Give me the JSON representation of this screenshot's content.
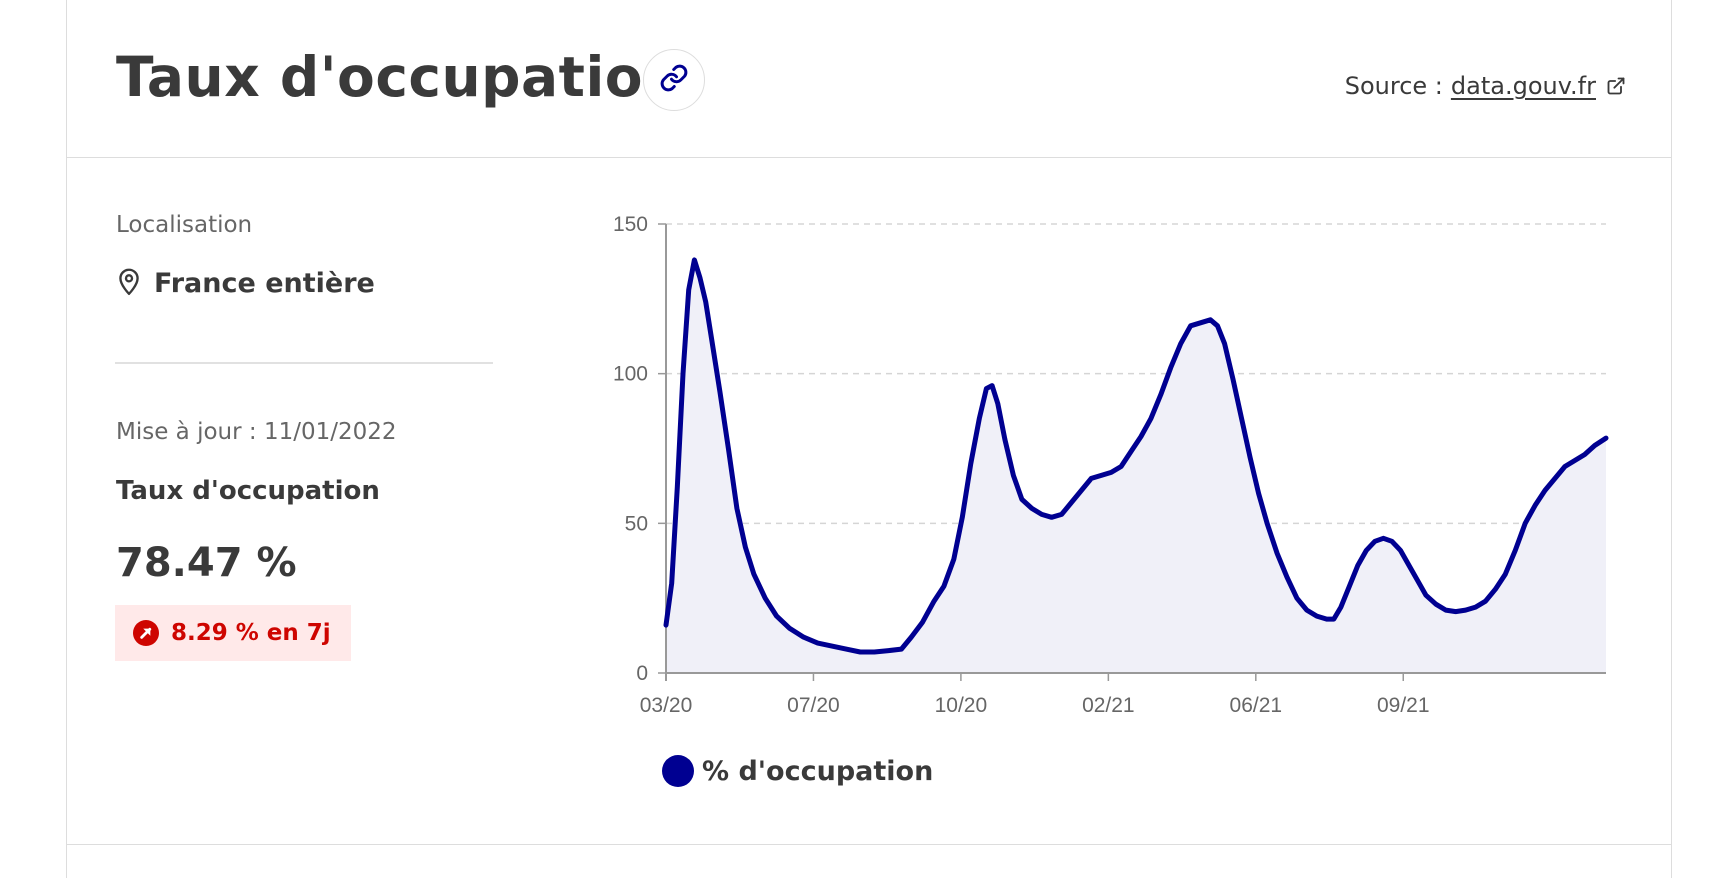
{
  "header": {
    "title": "Taux d'occupation",
    "source_prefix": "Source :",
    "source_link": "data.gouv.fr"
  },
  "sidebar": {
    "location_label": "Localisation",
    "location_value": "France entière",
    "update_text": "Mise à jour : 11/01/2022",
    "metric_label": "Taux d'occupation",
    "metric_value": "78.47 %",
    "delta_text": "8.29 % en 7j"
  },
  "colors": {
    "series": "#000091",
    "area_fill": "#f0f0f8",
    "delta_text": "#ce0500",
    "delta_bg": "#ffe9e9"
  },
  "icons": [
    "link-icon",
    "external-link-icon",
    "map-pin-icon",
    "arrow-up-right-icon"
  ],
  "chart_data": {
    "type": "area",
    "title": "",
    "xlabel": "",
    "ylabel": "",
    "ylim": [
      0,
      150
    ],
    "yticks": [
      0,
      50,
      100,
      150
    ],
    "xlim": [
      "2020-03-19",
      "2022-01-11"
    ],
    "xticks": [
      {
        "date": "2020-03-19",
        "label": "03/20"
      },
      {
        "date": "2020-07-01",
        "label": "07/20"
      },
      {
        "date": "2020-10-13",
        "label": "10/20"
      },
      {
        "date": "2021-01-25",
        "label": "02/21"
      },
      {
        "date": "2021-05-09",
        "label": "06/21"
      },
      {
        "date": "2021-08-21",
        "label": "09/21"
      }
    ],
    "grid": true,
    "legend_position": "bottom",
    "series": [
      {
        "name": "% d'occupation",
        "points": [
          [
            "2020-03-19",
            16
          ],
          [
            "2020-03-23",
            30
          ],
          [
            "2020-03-27",
            62
          ],
          [
            "2020-03-31",
            100
          ],
          [
            "2020-04-04",
            128
          ],
          [
            "2020-04-08",
            138
          ],
          [
            "2020-04-12",
            132
          ],
          [
            "2020-04-16",
            124
          ],
          [
            "2020-04-20",
            112
          ],
          [
            "2020-04-26",
            94
          ],
          [
            "2020-05-02",
            75
          ],
          [
            "2020-05-08",
            55
          ],
          [
            "2020-05-14",
            42
          ],
          [
            "2020-05-20",
            33
          ],
          [
            "2020-05-28",
            25
          ],
          [
            "2020-06-05",
            19
          ],
          [
            "2020-06-14",
            15
          ],
          [
            "2020-06-24",
            12
          ],
          [
            "2020-07-04",
            10
          ],
          [
            "2020-07-14",
            9
          ],
          [
            "2020-07-24",
            8
          ],
          [
            "2020-08-03",
            7
          ],
          [
            "2020-08-13",
            7
          ],
          [
            "2020-08-23",
            7.5
          ],
          [
            "2020-09-01",
            8
          ],
          [
            "2020-09-08",
            12
          ],
          [
            "2020-09-16",
            17
          ],
          [
            "2020-09-24",
            24
          ],
          [
            "2020-10-01",
            29
          ],
          [
            "2020-10-08",
            38
          ],
          [
            "2020-10-14",
            52
          ],
          [
            "2020-10-20",
            70
          ],
          [
            "2020-10-26",
            85
          ],
          [
            "2020-10-31",
            95
          ],
          [
            "2020-11-04",
            96
          ],
          [
            "2020-11-08",
            90
          ],
          [
            "2020-11-13",
            78
          ],
          [
            "2020-11-19",
            66
          ],
          [
            "2020-11-25",
            58
          ],
          [
            "2020-12-02",
            55
          ],
          [
            "2020-12-09",
            53
          ],
          [
            "2020-12-16",
            52
          ],
          [
            "2020-12-23",
            53
          ],
          [
            "2020-12-30",
            57
          ],
          [
            "2021-01-06",
            61
          ],
          [
            "2021-01-13",
            65
          ],
          [
            "2021-01-20",
            66
          ],
          [
            "2021-01-27",
            67
          ],
          [
            "2021-02-03",
            69
          ],
          [
            "2021-02-10",
            74
          ],
          [
            "2021-02-17",
            79
          ],
          [
            "2021-02-24",
            85
          ],
          [
            "2021-03-03",
            93
          ],
          [
            "2021-03-10",
            102
          ],
          [
            "2021-03-17",
            110
          ],
          [
            "2021-03-24",
            116
          ],
          [
            "2021-03-31",
            117
          ],
          [
            "2021-04-07",
            118
          ],
          [
            "2021-04-12",
            116
          ],
          [
            "2021-04-17",
            110
          ],
          [
            "2021-04-23",
            98
          ],
          [
            "2021-04-29",
            85
          ],
          [
            "2021-05-05",
            72
          ],
          [
            "2021-05-11",
            60
          ],
          [
            "2021-05-17",
            50
          ],
          [
            "2021-05-24",
            40
          ],
          [
            "2021-05-31",
            32
          ],
          [
            "2021-06-07",
            25
          ],
          [
            "2021-06-14",
            21
          ],
          [
            "2021-06-21",
            19
          ],
          [
            "2021-06-28",
            18
          ],
          [
            "2021-07-03",
            18
          ],
          [
            "2021-07-08",
            22
          ],
          [
            "2021-07-14",
            29
          ],
          [
            "2021-07-20",
            36
          ],
          [
            "2021-07-26",
            41
          ],
          [
            "2021-08-01",
            44
          ],
          [
            "2021-08-07",
            45
          ],
          [
            "2021-08-13",
            44
          ],
          [
            "2021-08-19",
            41
          ],
          [
            "2021-08-25",
            36
          ],
          [
            "2021-08-31",
            31
          ],
          [
            "2021-09-06",
            26
          ],
          [
            "2021-09-13",
            23
          ],
          [
            "2021-09-20",
            21
          ],
          [
            "2021-09-27",
            20.5
          ],
          [
            "2021-10-04",
            21
          ],
          [
            "2021-10-11",
            22
          ],
          [
            "2021-10-18",
            24
          ],
          [
            "2021-10-25",
            28
          ],
          [
            "2021-11-01",
            33
          ],
          [
            "2021-11-08",
            41
          ],
          [
            "2021-11-15",
            50
          ],
          [
            "2021-11-22",
            56
          ],
          [
            "2021-11-29",
            61
          ],
          [
            "2021-12-06",
            65
          ],
          [
            "2021-12-13",
            69
          ],
          [
            "2021-12-20",
            71
          ],
          [
            "2021-12-27",
            73
          ],
          [
            "2022-01-03",
            76
          ],
          [
            "2022-01-11",
            78.47
          ]
        ]
      }
    ]
  }
}
